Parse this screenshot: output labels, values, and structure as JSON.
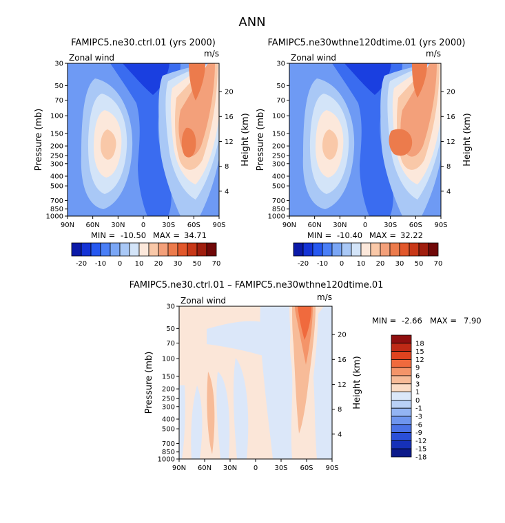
{
  "page_title": "ANN",
  "panels": [
    {
      "title": "FAMIPC5.ne30.ctrl.01 (yrs 2000)",
      "left_label": "Zonal wind",
      "right_label": "m/s",
      "ylabel": "Pressure (mb)",
      "ylabel_right": "Height (km)",
      "stats": {
        "min_label": "MIN =",
        "min": "-10.50",
        "max_label": "MAX =",
        "max": "34.71"
      }
    },
    {
      "title": "FAMIPC5.ne30wthne120dtime.01 (yrs 2000)",
      "left_label": "Zonal wind",
      "right_label": "m/s",
      "ylabel": "Pressure (mb)",
      "ylabel_right": "Height (km)",
      "stats": {
        "min_label": "MIN =",
        "min": "-10.40",
        "max_label": "MAX =",
        "max": "32.22"
      }
    },
    {
      "title": "FAMIPC5.ne30.ctrl.01 – FAMIPC5.ne30wthne120dtime.01",
      "left_label": "Zonal wind",
      "right_label": "m/s",
      "ylabel": "Pressure (mb)",
      "ylabel_right": "Height (km)",
      "stats": {
        "min_label": "MIN =",
        "min": "-2.66",
        "max_label": "MAX =",
        "max": "7.90"
      }
    }
  ],
  "chart_data": [
    {
      "type": "heatmap",
      "subtype": "filled-contour",
      "title": "FAMIPC5.ne30.ctrl.01 (yrs 2000)",
      "variable": "Zonal wind",
      "units": "m/s",
      "ylabel": "Pressure (mb)",
      "ylabel_right": "Height (km)",
      "x_ticks": [
        "90N",
        "60N",
        "30N",
        "0",
        "30S",
        "60S",
        "90S"
      ],
      "x_range": [
        90,
        -90
      ],
      "y_ticks": [
        30,
        50,
        70,
        100,
        150,
        200,
        250,
        300,
        400,
        500,
        700,
        850,
        1000
      ],
      "y_range": [
        30,
        1000
      ],
      "y_scale": "log",
      "height_ticks": [
        4,
        8,
        12,
        16,
        20
      ],
      "min": -10.5,
      "max": 34.71,
      "levels": [
        -20,
        -10,
        0,
        10,
        20,
        30,
        50,
        70
      ],
      "features": [
        {
          "kind": "jet",
          "lat": -45,
          "p": 200,
          "value": 34.71
        },
        {
          "kind": "jet",
          "lat": 35,
          "p": 200,
          "value": 22
        },
        {
          "kind": "easterly",
          "lat": 5,
          "p": 50,
          "value": -10.5
        }
      ]
    },
    {
      "type": "heatmap",
      "subtype": "filled-contour",
      "title": "FAMIPC5.ne30wthne120dtime.01 (yrs 2000)",
      "variable": "Zonal wind",
      "units": "m/s",
      "ylabel": "Pressure (mb)",
      "ylabel_right": "Height (km)",
      "x_ticks": [
        "90N",
        "60N",
        "30N",
        "0",
        "30S",
        "60S",
        "90S"
      ],
      "x_range": [
        90,
        -90
      ],
      "y_ticks": [
        30,
        50,
        70,
        100,
        150,
        200,
        250,
        300,
        400,
        500,
        700,
        850,
        1000
      ],
      "y_range": [
        30,
        1000
      ],
      "y_scale": "log",
      "height_ticks": [
        4,
        8,
        12,
        16,
        20
      ],
      "min": -10.4,
      "max": 32.22,
      "levels": [
        -20,
        -10,
        0,
        10,
        20,
        30,
        50,
        70
      ],
      "features": [
        {
          "kind": "jet",
          "lat": -45,
          "p": 200,
          "value": 32.22
        },
        {
          "kind": "jet",
          "lat": 35,
          "p": 200,
          "value": 22
        },
        {
          "kind": "easterly",
          "lat": 5,
          "p": 50,
          "value": -10.4
        }
      ]
    },
    {
      "type": "heatmap",
      "subtype": "filled-contour",
      "title": "FAMIPC5.ne30.ctrl.01 – FAMIPC5.ne30wthne120dtime.01",
      "variable": "Zonal wind",
      "units": "m/s",
      "ylabel": "Pressure (mb)",
      "ylabel_right": "Height (km)",
      "x_ticks": [
        "90N",
        "60N",
        "30N",
        "0",
        "30S",
        "60S",
        "90S"
      ],
      "x_range": [
        90,
        -90
      ],
      "y_ticks": [
        30,
        50,
        70,
        100,
        150,
        200,
        250,
        300,
        400,
        500,
        700,
        850,
        1000
      ],
      "y_range": [
        30,
        1000
      ],
      "y_scale": "log",
      "height_ticks": [
        4,
        8,
        12,
        16,
        20
      ],
      "min": -2.66,
      "max": 7.9,
      "levels": [
        -18,
        -15,
        -12,
        -9,
        -6,
        -3,
        -1,
        0,
        1,
        3,
        6,
        9,
        12,
        15,
        18
      ],
      "features": [
        {
          "kind": "positive",
          "lat": -55,
          "p": 40,
          "value": 7.9
        }
      ]
    }
  ],
  "colorbars": {
    "top": {
      "labels": [
        "-20",
        "-10",
        "0",
        "10",
        "20",
        "30",
        "50",
        "70"
      ],
      "colors": [
        "#0b1aa8",
        "#1433d6",
        "#2658f0",
        "#4a7ff7",
        "#7aa6f5",
        "#a9c8f6",
        "#d3e4f8",
        "#fce8db",
        "#f9c8a8",
        "#f3a07a",
        "#ec7b4c",
        "#e2582c",
        "#c83818",
        "#a01e0e",
        "#700808"
      ]
    },
    "diff": {
      "labels": [
        "18",
        "15",
        "12",
        "9",
        "6",
        "3",
        "1",
        "0",
        "-1",
        "-3",
        "-6",
        "-9",
        "-12",
        "-15",
        "-18"
      ],
      "colors": [
        "#8f0f0f",
        "#bf2a16",
        "#e0431f",
        "#f06a3d",
        "#f49469",
        "#f7bb98",
        "#fbdcc6",
        "#dbe7f9",
        "#b9d0f6",
        "#93b4f3",
        "#6e95ee",
        "#4a72e6",
        "#2a4fd8",
        "#1631b8",
        "#0c1a8a"
      ]
    }
  },
  "colors": {
    "top_field": {
      "neg3": "#1a3fe0",
      "neg2": "#3a6cf0",
      "neg1": "#6e9af4",
      "neg0": "#a9c8f6",
      "zero": "#d3e4f8",
      "pos1": "#fce8db",
      "pos2": "#f9c8a8",
      "pos3": "#f3a07a",
      "pos4": "#ec7b4c"
    },
    "diff_field": {
      "neg": "#dbe7f9",
      "pos": "#fbe6d8",
      "pos2": "#f7bb98",
      "pos3": "#f49469",
      "pos4": "#f06a3d",
      "pos5": "#e0431f"
    }
  }
}
